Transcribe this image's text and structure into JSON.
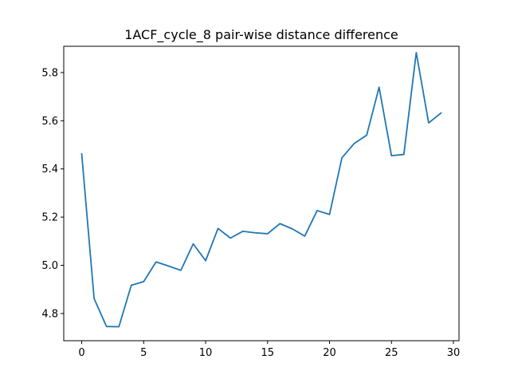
{
  "chart_data": {
    "type": "line",
    "title": "1ACF_cycle_8 pair-wise distance difference",
    "xlabel": "",
    "ylabel": "",
    "xlim": [
      -1.45,
      30.45
    ],
    "ylim": [
      4.687,
      5.909
    ],
    "x_ticks": [
      0,
      5,
      10,
      15,
      20,
      25,
      30
    ],
    "y_ticks": [
      4.8,
      5.0,
      5.2,
      5.4,
      5.6,
      5.8
    ],
    "y_tick_labels": [
      "4.8",
      "5.0",
      "5.2",
      "5.4",
      "5.6",
      "5.8"
    ],
    "grid": false,
    "legend": "none",
    "line_color": "#1f77b4",
    "series": [
      {
        "x": [
          0,
          1,
          2,
          3,
          4,
          5,
          6,
          7,
          8,
          9,
          10,
          11,
          12,
          13,
          14,
          15,
          16,
          17,
          18,
          19,
          20,
          21,
          22,
          23,
          24,
          25,
          26,
          27,
          28,
          29
        ],
        "values": [
          5.462,
          4.862,
          4.746,
          4.745,
          4.917,
          4.932,
          5.014,
          4.997,
          4.979,
          5.089,
          5.019,
          5.153,
          5.113,
          5.141,
          5.135,
          5.131,
          5.173,
          5.151,
          5.121,
          5.227,
          5.211,
          5.446,
          5.506,
          5.54,
          5.739,
          5.455,
          5.46,
          5.883,
          5.591,
          5.632
        ]
      }
    ]
  }
}
